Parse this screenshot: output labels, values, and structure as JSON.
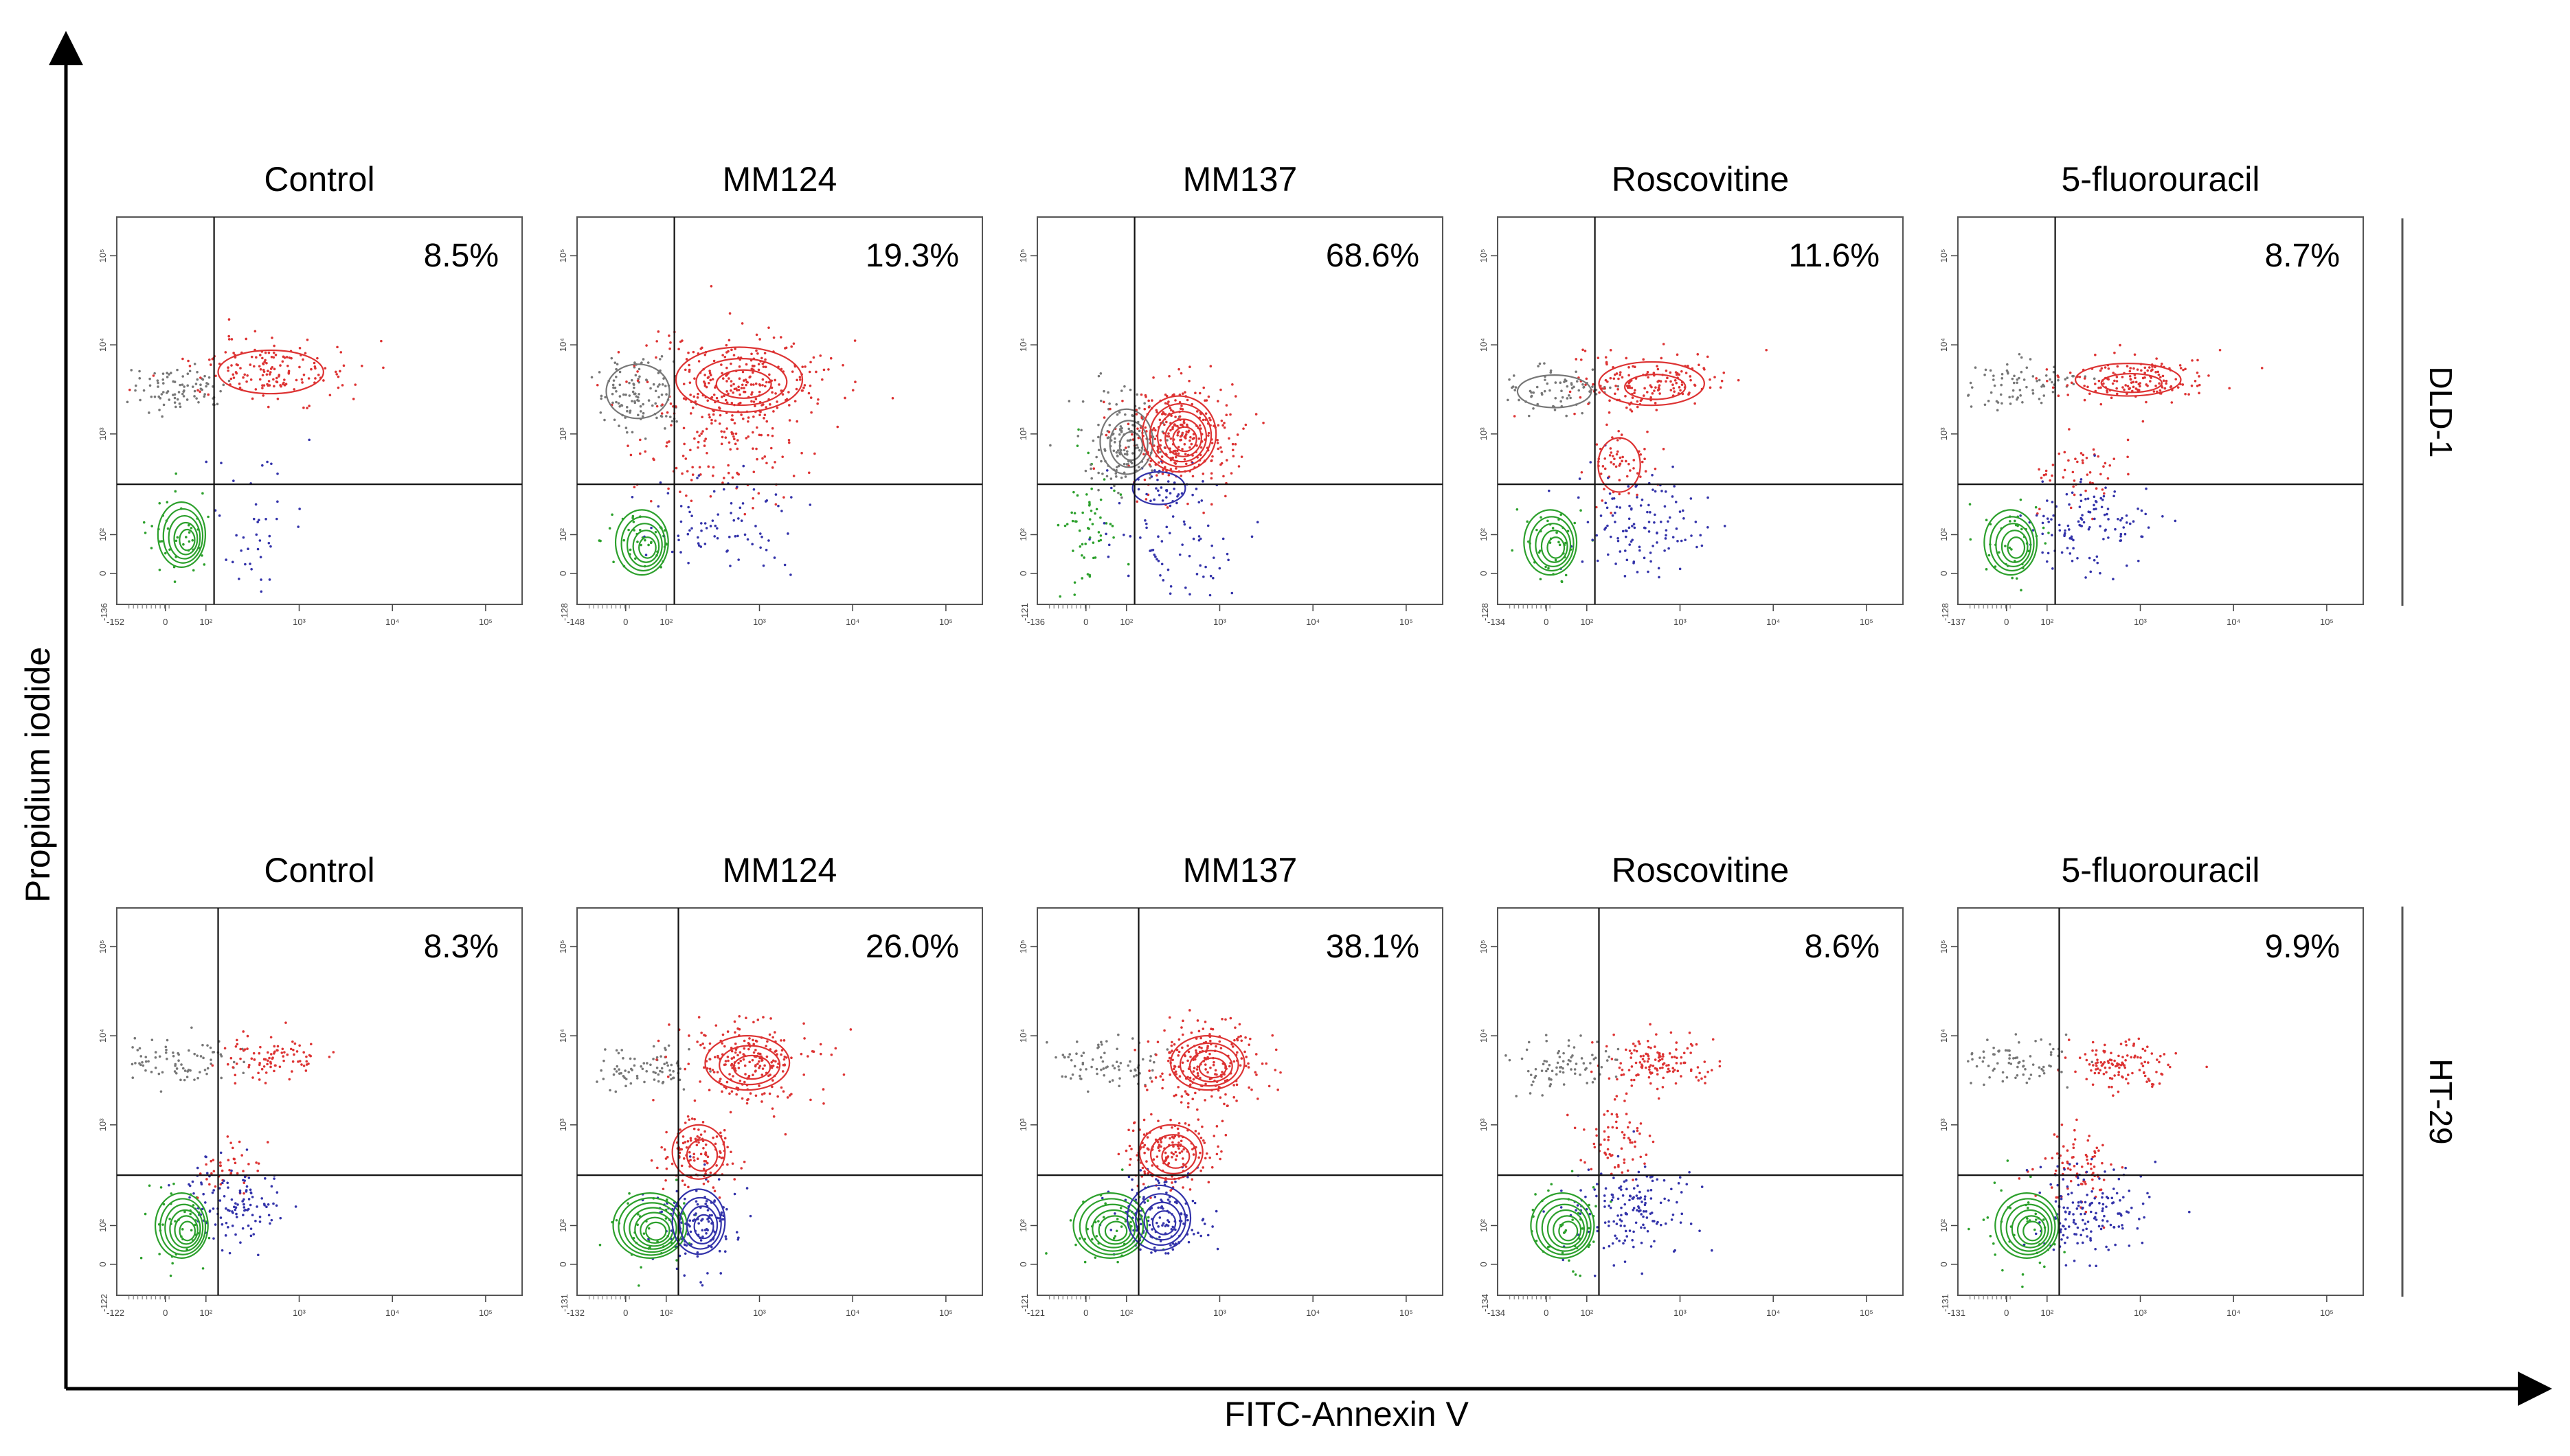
{
  "chart_data": {
    "type": "scatter",
    "title": "",
    "xlabel": "FITC-Annexin V",
    "ylabel": "Propidium iodide",
    "rows": [
      {
        "cell_line": "DLD-1",
        "panels": [
          {
            "treatment": "Control",
            "percent": "8.5%",
            "xmin_tick": "-152",
            "ymin_tick": "-136"
          },
          {
            "treatment": "MM124",
            "percent": "19.3%",
            "xmin_tick": "-148",
            "ymin_tick": "-128"
          },
          {
            "treatment": "MM137",
            "percent": "68.6%",
            "xmin_tick": "-136",
            "ymin_tick": "-121"
          },
          {
            "treatment": "Roscovitine",
            "percent": "11.6%",
            "xmin_tick": "-134",
            "ymin_tick": "-128"
          },
          {
            "treatment": "5-fluorouracil",
            "percent": "8.7%",
            "xmin_tick": "-137",
            "ymin_tick": "-128"
          }
        ]
      },
      {
        "cell_line": "HT-29",
        "panels": [
          {
            "treatment": "Control",
            "percent": "8.3%",
            "xmin_tick": "-122",
            "ymin_tick": "-122"
          },
          {
            "treatment": "MM124",
            "percent": "26.0%",
            "xmin_tick": "-132",
            "ymin_tick": "-131"
          },
          {
            "treatment": "MM137",
            "percent": "38.1%",
            "xmin_tick": "-121",
            "ymin_tick": "-121"
          },
          {
            "treatment": "Roscovitine",
            "percent": "8.6%",
            "xmin_tick": "-134",
            "ymin_tick": "-134"
          },
          {
            "treatment": "5-fluorouracil",
            "percent": "9.9%",
            "xmin_tick": "-131",
            "ymin_tick": "-131"
          }
        ]
      }
    ],
    "axis_tick_labels": [
      "0",
      "10²",
      "10³",
      "10⁴",
      "10⁵"
    ],
    "population_colors": {
      "live": "#2ca02c",
      "early_apoptotic": "#3333aa",
      "late_apoptotic": "#dd3333",
      "necrotic": "#777777",
      "gate_line": "#111111",
      "frame": "#555555"
    }
  }
}
